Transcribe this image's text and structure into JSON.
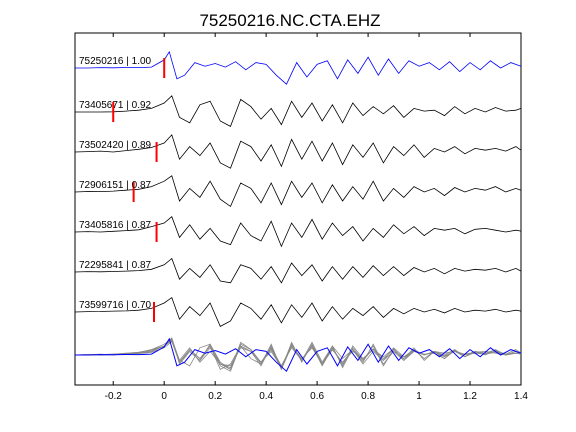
{
  "chart_data": {
    "type": "line",
    "title": "75250216.NC.CTA.EHZ",
    "xlabel": "",
    "ylabel": "",
    "xlim": [
      -0.35,
      1.4
    ],
    "xticks": [
      -0.2,
      0,
      0.2,
      0.4,
      0.6,
      0.8,
      1,
      1.2,
      1.4
    ],
    "xtick_labels": [
      "-0.2",
      "0",
      "0.2",
      "0.4",
      "0.6",
      "0.8",
      "1",
      "1.2",
      "1.4"
    ],
    "grid": false,
    "colors": {
      "reference": "#0000ff",
      "trace": "#000000",
      "stack": "#888888",
      "pick": "#ff0000"
    },
    "series": [
      {
        "name": "75250216 | 1.00",
        "label": "75250216 | 1.00",
        "correlation": 1.0,
        "pick_x": 0.0,
        "color": "#0000ff",
        "x": [
          -0.35,
          -0.3,
          -0.25,
          -0.2,
          -0.15,
          -0.1,
          -0.05,
          0,
          0.02,
          0.05,
          0.08,
          0.12,
          0.16,
          0.2,
          0.24,
          0.28,
          0.32,
          0.36,
          0.4,
          0.44,
          0.48,
          0.52,
          0.56,
          0.6,
          0.64,
          0.68,
          0.72,
          0.76,
          0.8,
          0.84,
          0.88,
          0.92,
          0.96,
          1,
          1.04,
          1.08,
          1.12,
          1.16,
          1.2,
          1.24,
          1.28,
          1.32,
          1.36,
          1.4
        ],
        "y": [
          0,
          0,
          0.02,
          0.01,
          0.03,
          0.02,
          0.05,
          0.45,
          0.9,
          -0.6,
          -0.4,
          0.3,
          0.1,
          0.25,
          0.05,
          0.35,
          -0.1,
          0.3,
          0.2,
          -0.4,
          -0.9,
          0.3,
          -0.5,
          0.2,
          0.4,
          -0.6,
          0.45,
          -0.3,
          0.6,
          -0.4,
          0.5,
          -0.3,
          0.4,
          0.1,
          0.3,
          -0.1,
          0.35,
          -0.2,
          0.3,
          -0.1,
          0.4,
          0,
          0.3,
          0.1
        ]
      },
      {
        "name": "73405671 | 0.92",
        "label": "73405671 | 0.92",
        "correlation": 0.92,
        "pick_x": -0.2,
        "color": "#000000",
        "x": [
          -0.35,
          -0.3,
          -0.25,
          -0.2,
          -0.15,
          -0.1,
          -0.05,
          0,
          0.03,
          0.06,
          0.1,
          0.14,
          0.18,
          0.22,
          0.26,
          0.3,
          0.34,
          0.38,
          0.42,
          0.46,
          0.5,
          0.54,
          0.58,
          0.62,
          0.66,
          0.7,
          0.74,
          0.78,
          0.82,
          0.86,
          0.9,
          0.94,
          0.98,
          1.02,
          1.06,
          1.1,
          1.14,
          1.18,
          1.22,
          1.26,
          1.3,
          1.34,
          1.38,
          1.4
        ],
        "y": [
          0,
          0,
          0,
          0.01,
          0.05,
          0.1,
          0.2,
          0.5,
          0.9,
          -0.3,
          -0.6,
          0.4,
          0.6,
          -0.5,
          -0.8,
          0.7,
          0.3,
          -0.4,
          0.2,
          -0.7,
          0.6,
          -0.3,
          0.5,
          -0.5,
          0.4,
          -0.6,
          0.5,
          -0.2,
          0.3,
          -0.1,
          0.35,
          -0.3,
          0.2,
          0.05,
          0.1,
          -0.2,
          0.3,
          -0.1,
          0.2,
          0,
          0.25,
          0.05,
          0.1,
          0.2
        ]
      },
      {
        "name": "73502420 | 0.89",
        "label": "73502420 | 0.89",
        "correlation": 0.89,
        "pick_x": -0.03,
        "color": "#000000",
        "x": [
          -0.35,
          -0.3,
          -0.25,
          -0.2,
          -0.15,
          -0.1,
          -0.05,
          0,
          0.03,
          0.06,
          0.1,
          0.14,
          0.18,
          0.22,
          0.26,
          0.3,
          0.34,
          0.38,
          0.42,
          0.46,
          0.5,
          0.54,
          0.58,
          0.62,
          0.66,
          0.7,
          0.74,
          0.78,
          0.82,
          0.86,
          0.9,
          0.94,
          0.98,
          1.02,
          1.06,
          1.1,
          1.14,
          1.18,
          1.22,
          1.26,
          1.3,
          1.34,
          1.38,
          1.4
        ],
        "y": [
          0,
          0.02,
          0.05,
          0,
          0.08,
          0.15,
          0.25,
          0.5,
          0.95,
          -0.4,
          0.3,
          -0.2,
          0.5,
          -0.6,
          -0.9,
          0.6,
          0.3,
          -0.5,
          0.4,
          -0.8,
          0.7,
          -0.4,
          0.6,
          -0.5,
          0.5,
          -0.7,
          0.4,
          -0.3,
          0.5,
          -0.6,
          0.3,
          -0.2,
          0.4,
          -0.3,
          0.2,
          0,
          0.3,
          -0.1,
          0.2,
          0.1,
          0.2,
          0.05,
          0.3,
          0.1
        ]
      },
      {
        "name": "72906151 | 0.87",
        "label": "72906151 | 0.87",
        "correlation": 0.87,
        "pick_x": -0.12,
        "color": "#000000",
        "x": [
          -0.35,
          -0.3,
          -0.25,
          -0.2,
          -0.15,
          -0.1,
          -0.05,
          0,
          0.03,
          0.06,
          0.1,
          0.14,
          0.18,
          0.22,
          0.26,
          0.3,
          0.34,
          0.38,
          0.42,
          0.46,
          0.5,
          0.54,
          0.58,
          0.62,
          0.66,
          0.7,
          0.74,
          0.78,
          0.82,
          0.86,
          0.9,
          0.94,
          0.98,
          1.02,
          1.06,
          1.1,
          1.14,
          1.18,
          1.22,
          1.26,
          1.3,
          1.34,
          1.38,
          1.4
        ],
        "y": [
          0,
          0.03,
          0.02,
          0.05,
          0.1,
          0.15,
          0.3,
          0.6,
          0.9,
          -0.5,
          0.2,
          -0.3,
          0.6,
          -0.4,
          -0.8,
          0.5,
          0.2,
          -0.6,
          0.5,
          -0.7,
          0.6,
          -0.3,
          0.5,
          -0.6,
          0.4,
          -0.5,
          0.3,
          -0.4,
          0.6,
          -0.5,
          0.2,
          -0.3,
          0.3,
          0,
          0.2,
          -0.2,
          0.25,
          0,
          0.2,
          0.1,
          0.3,
          0,
          0.2,
          0.1
        ]
      },
      {
        "name": "73405816 | 0.87",
        "label": "73405816 | 0.87",
        "correlation": 0.87,
        "pick_x": -0.03,
        "color": "#000000",
        "x": [
          -0.35,
          -0.3,
          -0.25,
          -0.2,
          -0.15,
          -0.1,
          -0.05,
          0,
          0.03,
          0.06,
          0.1,
          0.14,
          0.18,
          0.22,
          0.26,
          0.3,
          0.34,
          0.38,
          0.42,
          0.46,
          0.5,
          0.54,
          0.58,
          0.62,
          0.66,
          0.7,
          0.74,
          0.78,
          0.82,
          0.86,
          0.9,
          0.94,
          0.98,
          1.02,
          1.06,
          1.1,
          1.14,
          1.18,
          1.22,
          1.26,
          1.3,
          1.34,
          1.38,
          1.4
        ],
        "y": [
          0,
          0.02,
          0,
          0.04,
          0.08,
          0.12,
          0.3,
          0.5,
          0.85,
          -0.3,
          0.4,
          -0.4,
          0.2,
          -0.5,
          -0.7,
          0.5,
          -0.2,
          -0.5,
          0.6,
          -0.8,
          0.5,
          -0.3,
          0.7,
          -0.4,
          0.5,
          -0.2,
          0.3,
          -0.5,
          0.2,
          -0.3,
          0.4,
          -0.1,
          0.3,
          -0.2,
          0.2,
          0.1,
          0.2,
          -0.1,
          0.15,
          0.2,
          0.1,
          0,
          0.1,
          0.05
        ]
      },
      {
        "name": "72295841 | 0.87",
        "label": "72295841 | 0.87",
        "correlation": 0.87,
        "pick_x": null,
        "color": "#000000",
        "x": [
          -0.35,
          -0.3,
          -0.25,
          -0.2,
          -0.15,
          -0.1,
          -0.05,
          0,
          0.03,
          0.06,
          0.1,
          0.14,
          0.18,
          0.22,
          0.26,
          0.3,
          0.34,
          0.38,
          0.42,
          0.46,
          0.5,
          0.54,
          0.58,
          0.62,
          0.66,
          0.7,
          0.74,
          0.78,
          0.82,
          0.86,
          0.9,
          0.94,
          0.98,
          1.02,
          1.06,
          1.1,
          1.14,
          1.18,
          1.22,
          1.26,
          1.3,
          1.34,
          1.38,
          1.4
        ],
        "y": [
          0,
          0.02,
          0.01,
          0.03,
          0.05,
          0.08,
          0.15,
          0.4,
          0.75,
          -0.4,
          0.2,
          -0.3,
          0.4,
          -0.5,
          -0.6,
          0.4,
          0.2,
          -0.4,
          0.3,
          -0.6,
          0.5,
          -0.2,
          0.4,
          -0.5,
          0.3,
          -0.4,
          0.3,
          -0.3,
          0.35,
          -0.2,
          0.3,
          -0.2,
          0.25,
          0,
          0.2,
          -0.1,
          0.2,
          0.05,
          0.15,
          0.1,
          0.2,
          0,
          0.2,
          0.05
        ]
      },
      {
        "name": "73599716 | 0.70",
        "label": "73599716 | 0.70",
        "correlation": 0.7,
        "pick_x": -0.04,
        "color": "#000000",
        "x": [
          -0.35,
          -0.3,
          -0.25,
          -0.2,
          -0.15,
          -0.1,
          -0.05,
          0,
          0.03,
          0.06,
          0.1,
          0.14,
          0.18,
          0.22,
          0.26,
          0.3,
          0.34,
          0.38,
          0.42,
          0.46,
          0.5,
          0.54,
          0.58,
          0.62,
          0.66,
          0.7,
          0.74,
          0.78,
          0.82,
          0.86,
          0.9,
          0.94,
          0.98,
          1.02,
          1.06,
          1.1,
          1.14,
          1.18,
          1.22,
          1.26,
          1.3,
          1.34,
          1.38,
          1.4
        ],
        "y": [
          0,
          0.02,
          0.03,
          0.05,
          0.06,
          0.1,
          0.2,
          0.5,
          0.8,
          -0.4,
          0.3,
          -0.2,
          0.5,
          -0.8,
          -0.5,
          0.5,
          0.2,
          -0.4,
          0.4,
          -0.6,
          0.4,
          -0.3,
          0.5,
          -0.5,
          0.3,
          -0.4,
          0.2,
          -0.2,
          0.3,
          -0.3,
          0.2,
          -0.1,
          0.2,
          0,
          0.15,
          -0.05,
          0.2,
          0,
          0.1,
          0.05,
          0.15,
          0,
          0.1,
          0.05
        ]
      }
    ]
  }
}
